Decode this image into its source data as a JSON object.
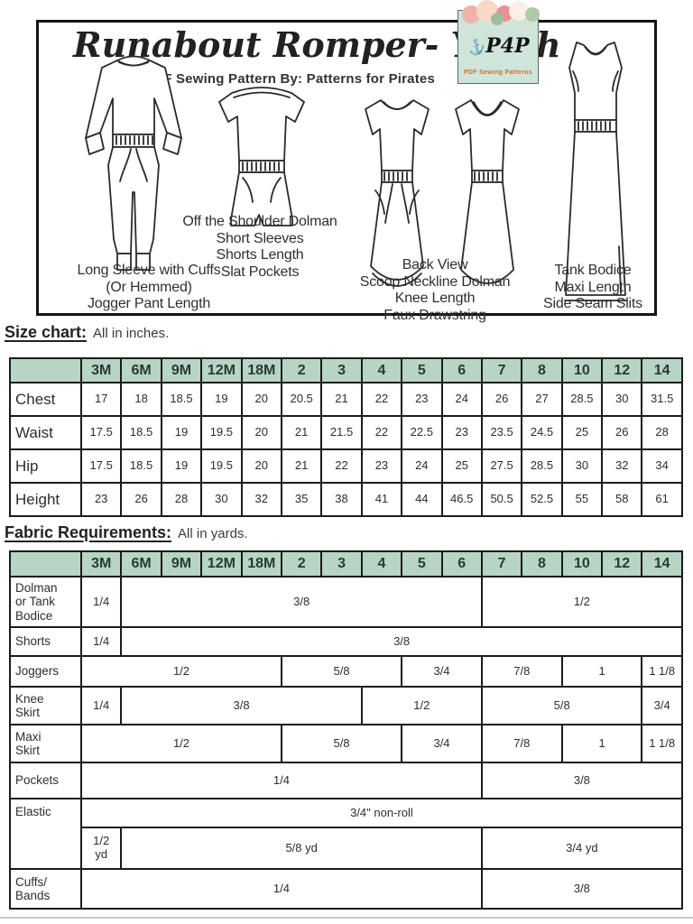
{
  "header": {
    "title": "Runabout Romper- Youth",
    "subtitle": "PDF Sewing Pattern By: Patterns for Pirates",
    "logo": {
      "text": "P4P",
      "subtext": "PDF Sewing Patterns"
    }
  },
  "cover": {
    "captions": {
      "jumpsuit": "Long Sleeve with Cuffs\n(Or Hemmed)\nJogger Pant Length",
      "romper": "Off the Shoulder Dolman\nShort Sleeves\nShorts Length\nSlat Pockets",
      "dresses": "Back View\nScoop Neckline Dolman\nKnee Length\nFaux Drawstring",
      "maxi": "Tank Bodice\nMaxi Length\nSide Seam Slits"
    }
  },
  "colors": {
    "header_green": "#b6d5c4"
  },
  "size_chart": {
    "heading": "Size chart:",
    "heading_note": "All in inches.",
    "columns": [
      "3M",
      "6M",
      "9M",
      "12M",
      "18M",
      "2",
      "3",
      "4",
      "5",
      "6",
      "7",
      "8",
      "10",
      "12",
      "14"
    ],
    "rows": [
      {
        "label": "Chest",
        "values": [
          "17",
          "18",
          "18.5",
          "19",
          "20",
          "20.5",
          "21",
          "22",
          "23",
          "24",
          "26",
          "27",
          "28.5",
          "30",
          "31.5"
        ]
      },
      {
        "label": "Waist",
        "values": [
          "17.5",
          "18.5",
          "19",
          "19.5",
          "20",
          "21",
          "21.5",
          "22",
          "22.5",
          "23",
          "23.5",
          "24.5",
          "25",
          "26",
          "28"
        ]
      },
      {
        "label": "Hip",
        "values": [
          "17.5",
          "18.5",
          "19",
          "19.5",
          "20",
          "21",
          "22",
          "23",
          "24",
          "25",
          "27.5",
          "28.5",
          "30",
          "32",
          "34"
        ]
      },
      {
        "label": "Height",
        "values": [
          "23",
          "26",
          "28",
          "30",
          "32",
          "35",
          "38",
          "41",
          "44",
          "46.5",
          "50.5",
          "52.5",
          "55",
          "58",
          "61"
        ]
      }
    ]
  },
  "fabric_requirements": {
    "heading": "Fabric Requirements:",
    "heading_note": "All in yards.",
    "columns": [
      "3M",
      "6M",
      "9M",
      "12M",
      "18M",
      "2",
      "3",
      "4",
      "5",
      "6",
      "7",
      "8",
      "10",
      "12",
      "14"
    ],
    "rows": [
      {
        "label": "Dolman\nor Tank\nBodice",
        "cells": [
          {
            "t": "1/4",
            "s": 1
          },
          {
            "t": "3/8",
            "s": 9
          },
          {
            "t": "1/2",
            "s": 5
          }
        ]
      },
      {
        "label": "Shorts",
        "cells": [
          {
            "t": "1/4",
            "s": 1
          },
          {
            "t": "3/8",
            "s": 14
          }
        ]
      },
      {
        "label": "Joggers",
        "cells": [
          {
            "t": "1/2",
            "s": 5
          },
          {
            "t": "5/8",
            "s": 3
          },
          {
            "t": "3/4",
            "s": 2
          },
          {
            "t": "7/8",
            "s": 2
          },
          {
            "t": "1",
            "s": 2
          },
          {
            "t": "1 1/8",
            "s": 1
          }
        ]
      },
      {
        "label": "Knee\nSkirt",
        "cells": [
          {
            "t": "1/4",
            "s": 1
          },
          {
            "t": "3/8",
            "s": 6
          },
          {
            "t": "1/2",
            "s": 3
          },
          {
            "t": "5/8",
            "s": 4
          },
          {
            "t": "3/4",
            "s": 1
          }
        ]
      },
      {
        "label": "Maxi\nSkirt",
        "cells": [
          {
            "t": "1/2",
            "s": 5
          },
          {
            "t": "5/8",
            "s": 3
          },
          {
            "t": "3/4",
            "s": 2
          },
          {
            "t": "7/8",
            "s": 2
          },
          {
            "t": "1",
            "s": 2
          },
          {
            "t": "1 1/8",
            "s": 1
          }
        ]
      },
      {
        "label": "Pockets",
        "cells": [
          {
            "t": "1/4",
            "s": 10
          },
          {
            "t": "3/8",
            "s": 5
          }
        ]
      },
      {
        "label": "Elastic",
        "label_rowspan": 2,
        "cells": [
          {
            "t": "3/4\" non-roll",
            "s": 15
          }
        ]
      },
      {
        "label": null,
        "cells": [
          {
            "t": "1/2\nyd",
            "s": 1
          },
          {
            "t": "5/8 yd",
            "s": 9
          },
          {
            "t": "3/4 yd",
            "s": 5
          }
        ]
      },
      {
        "label": "Cuffs/\nBands",
        "cells": [
          {
            "t": "1/4",
            "s": 10
          },
          {
            "t": "3/8",
            "s": 5
          }
        ]
      }
    ]
  }
}
